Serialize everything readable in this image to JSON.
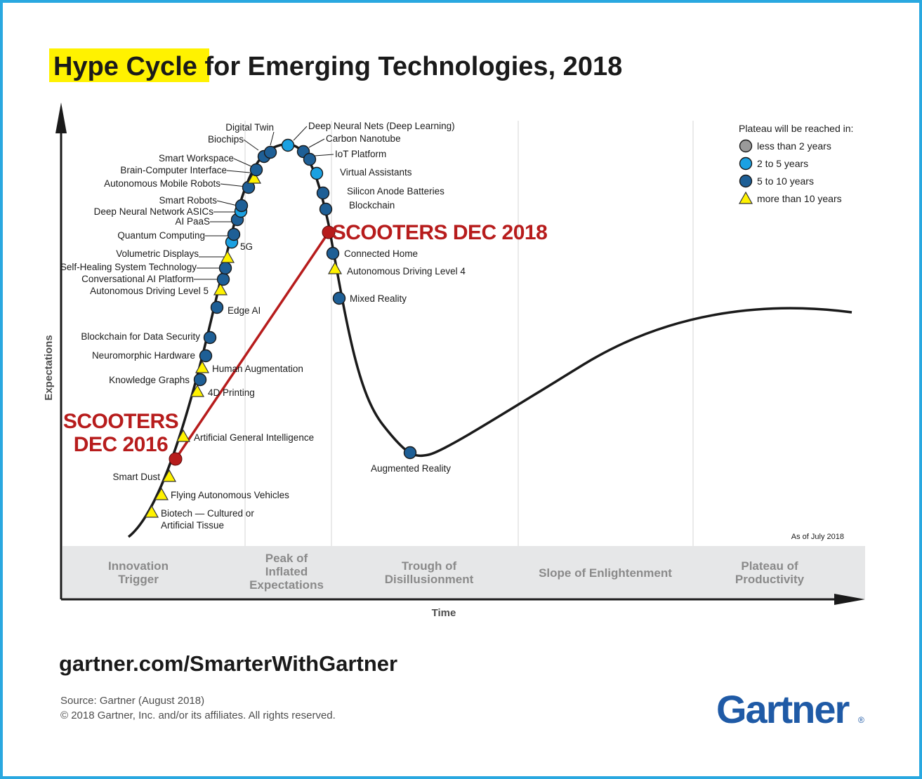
{
  "title": {
    "highlight": "Hype Cycle",
    "rest": " for Emerging Technologies, 2018",
    "highlight_color": "#fff200"
  },
  "url": "gartner.com/SmarterWithGartner",
  "source_line": "Source: Gartner (August 2018)",
  "copyright_line": "© 2018 Gartner, Inc. and/or its affiliates. All rights reserved.",
  "logo": {
    "text": "Gartner",
    "mark": "®",
    "color": "#1f5aa6"
  },
  "as_of": "As of July 2018",
  "chart_data": {
    "type": "scatter",
    "xlabel": "Time",
    "ylabel": "Expectations",
    "phases": [
      [
        "Innovation",
        "Trigger"
      ],
      [
        "Peak of",
        "Inflated",
        "Expectations"
      ],
      [
        "Trough of",
        "Disillusionment"
      ],
      [
        "Slope of Enlightenment"
      ],
      [
        "Plateau of",
        "Productivity"
      ]
    ],
    "legend": {
      "title": "Plateau will be reached in:",
      "items": [
        {
          "key": "lt2",
          "label": "less than 2 years",
          "shape": "circle",
          "color": "#9a9a9a"
        },
        {
          "key": "2to5",
          "label": "2 to 5 years",
          "shape": "circle",
          "color": "#1ba1e2"
        },
        {
          "key": "5to10",
          "label": "5 to 10 years",
          "shape": "circle",
          "color": "#1e5f96"
        },
        {
          "key": "gt10",
          "label": "more than 10 years",
          "shape": "triangle",
          "color": "#fff200"
        }
      ]
    },
    "technologies": [
      {
        "name": "Biotech — Cultured or",
        "name2": "Artificial Tissue",
        "category": "gt10"
      },
      {
        "name": "Flying Autonomous Vehicles",
        "category": "gt10"
      },
      {
        "name": "Smart Dust",
        "category": "gt10"
      },
      {
        "name": "Artificial General Intelligence",
        "category": "gt10"
      },
      {
        "name": "4D Printing",
        "category": "gt10"
      },
      {
        "name": "Knowledge Graphs",
        "category": "5to10"
      },
      {
        "name": "Human Augmentation",
        "category": "gt10"
      },
      {
        "name": "Neuromorphic Hardware",
        "category": "5to10"
      },
      {
        "name": "Blockchain for Data Security",
        "category": "5to10"
      },
      {
        "name": "Edge AI",
        "category": "5to10"
      },
      {
        "name": "Autonomous Driving Level 5",
        "category": "gt10"
      },
      {
        "name": "Conversational AI Platform",
        "category": "5to10"
      },
      {
        "name": "Self-Healing System Technology",
        "category": "5to10"
      },
      {
        "name": "Volumetric Displays",
        "category": "gt10"
      },
      {
        "name": "5G",
        "category": "2to5"
      },
      {
        "name": "Quantum Computing",
        "category": "5to10"
      },
      {
        "name": "AI PaaS",
        "category": "5to10"
      },
      {
        "name": "Deep Neural Network ASICs",
        "category": "2to5"
      },
      {
        "name": "Smart Robots",
        "category": "5to10"
      },
      {
        "name": "Autonomous Mobile Robots",
        "category": "5to10"
      },
      {
        "name": "Brain-Computer Interface",
        "category": "gt10"
      },
      {
        "name": "Smart Workspace",
        "category": "5to10"
      },
      {
        "name": "Biochips",
        "category": "5to10"
      },
      {
        "name": "Digital Twin",
        "category": "5to10"
      },
      {
        "name": "Deep Neural Nets (Deep Learning)",
        "category": "2to5"
      },
      {
        "name": "Carbon Nanotube",
        "category": "5to10"
      },
      {
        "name": "IoT Platform",
        "category": "5to10"
      },
      {
        "name": "Virtual Assistants",
        "category": "2to5"
      },
      {
        "name": "Silicon Anode Batteries",
        "category": "5to10"
      },
      {
        "name": "Blockchain",
        "category": "5to10"
      },
      {
        "name": "Connected Home",
        "category": "5to10"
      },
      {
        "name": "Autonomous Driving Level 4",
        "category": "gt10"
      },
      {
        "name": "Mixed Reality",
        "category": "5to10"
      },
      {
        "name": "Augmented Reality",
        "category": "5to10"
      }
    ],
    "annotations": [
      {
        "label": [
          "SCOOTERS",
          "DEC 2016"
        ],
        "color": "#b71c1c"
      },
      {
        "label": [
          "SCOOTERS DEC 2018"
        ],
        "color": "#b71c1c"
      }
    ]
  }
}
